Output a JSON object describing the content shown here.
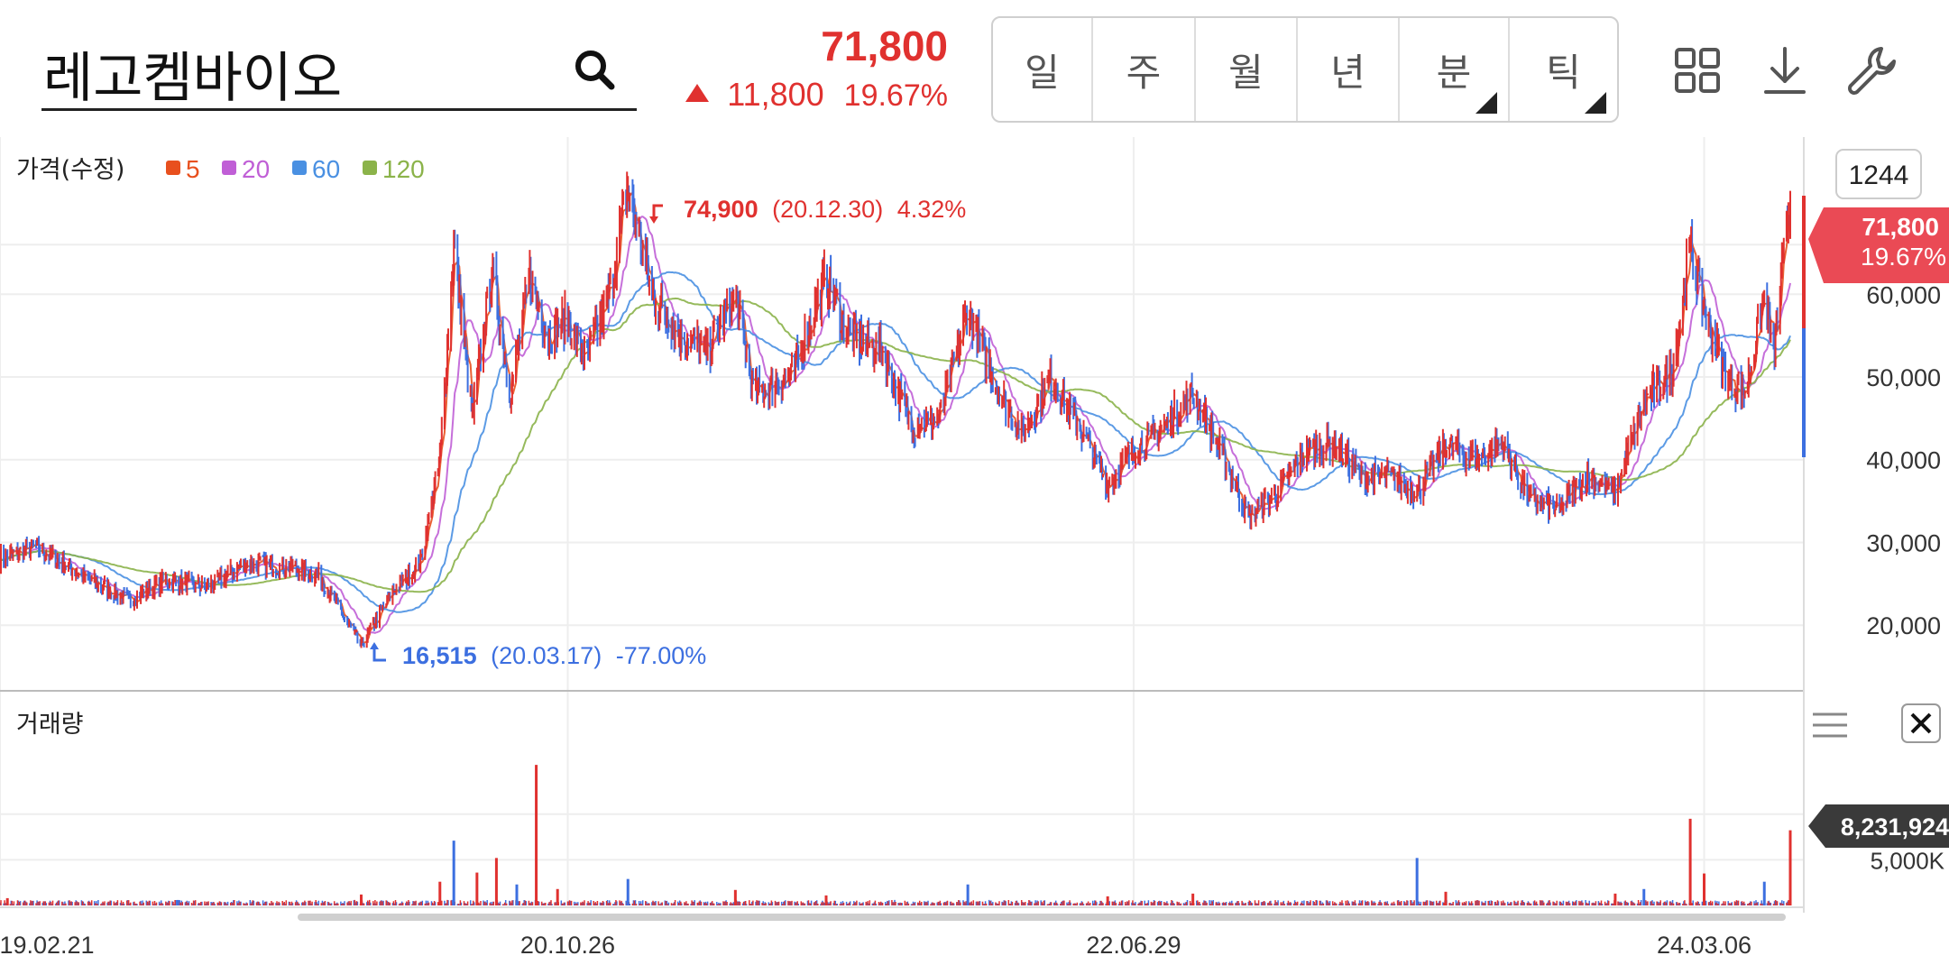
{
  "header": {
    "stock_name": "레고켐바이오",
    "price": "71,800",
    "change": "11,800",
    "change_pct": "19.67%"
  },
  "period_tabs": [
    {
      "label": "일",
      "active": true,
      "has_submenu": false
    },
    {
      "label": "주",
      "active": false,
      "has_submenu": false
    },
    {
      "label": "월",
      "active": false,
      "has_submenu": false
    },
    {
      "label": "년",
      "active": false,
      "has_submenu": false
    },
    {
      "label": "분",
      "active": false,
      "has_submenu": true
    },
    {
      "label": "틱",
      "active": false,
      "has_submenu": true
    }
  ],
  "icons": [
    "search-icon",
    "grid-icon",
    "download-icon",
    "wrench-icon",
    "menu-icon",
    "close-icon"
  ],
  "colors": {
    "up": "#e0312f",
    "down": "#3c6fe0",
    "ma5": "#e8501e",
    "ma20": "#c05fd6",
    "ma60": "#4a90e2",
    "ma120": "#8bb34a"
  },
  "chart_data": [
    {
      "type": "line",
      "title": "가격(수정)",
      "legend": [
        {
          "label": "5",
          "color": "#e8501e"
        },
        {
          "label": "20",
          "color": "#c05fd6"
        },
        {
          "label": "60",
          "color": "#4a90e2"
        },
        {
          "label": "120",
          "color": "#8bb34a"
        }
      ],
      "candle_count_label": "1244",
      "x_ticks": [
        "19.02.21",
        "20.10.26",
        "22.06.29",
        "24.03.06"
      ],
      "y_ticks": [
        "60,000",
        "50,000",
        "40,000",
        "30,000",
        "20,000"
      ],
      "y_tick_values": [
        60000,
        50000,
        40000,
        30000,
        20000
      ],
      "ylim": [
        12500,
        79000
      ],
      "current_price_label": {
        "price": "71,800",
        "pct": "19.67%"
      },
      "high_annotation": {
        "value": "74,900",
        "date": "(20.12.30)",
        "pct": "4.32%"
      },
      "low_annotation": {
        "value": "16,515",
        "date": "(20.03.17)",
        "pct": "-77.00%"
      },
      "series": [
        {
          "name": "close",
          "points": [
            [
              "2019-02-21",
              28000
            ],
            [
              "2019-04-01",
              29500
            ],
            [
              "2019-05-20",
              26000
            ],
            [
              "2019-07-10",
              23000
            ],
            [
              "2019-08-20",
              25500
            ],
            [
              "2019-10-01",
              24500
            ],
            [
              "2019-11-15",
              27500
            ],
            [
              "2019-12-30",
              27000
            ],
            [
              "2020-02-01",
              26000
            ],
            [
              "2020-03-17",
              17500
            ],
            [
              "2020-04-20",
              24000
            ],
            [
              "2020-05-20",
              27500
            ],
            [
              "2020-06-10",
              40000
            ],
            [
              "2020-06-25",
              66000
            ],
            [
              "2020-07-15",
              45000
            ],
            [
              "2020-08-05",
              63000
            ],
            [
              "2020-08-25",
              48000
            ],
            [
              "2020-09-15",
              62000
            ],
            [
              "2020-10-05",
              55000
            ],
            [
              "2020-10-26",
              57000
            ],
            [
              "2020-11-15",
              52000
            ],
            [
              "2020-12-10",
              60000
            ],
            [
              "2020-12-30",
              73000
            ],
            [
              "2021-01-25",
              60000
            ],
            [
              "2021-02-25",
              55000
            ],
            [
              "2021-03-25",
              53000
            ],
            [
              "2021-04-25",
              60000
            ],
            [
              "2021-05-15",
              48000
            ],
            [
              "2021-06-25",
              50000
            ],
            [
              "2021-08-01",
              62000
            ],
            [
              "2021-08-25",
              55000
            ],
            [
              "2021-10-01",
              53000
            ],
            [
              "2021-11-01",
              44000
            ],
            [
              "2021-12-01",
              45000
            ],
            [
              "2022-01-01",
              58000
            ],
            [
              "2022-02-01",
              49000
            ],
            [
              "2022-03-01",
              43000
            ],
            [
              "2022-04-01",
              50000
            ],
            [
              "2022-05-01",
              44000
            ],
            [
              "2022-06-01",
              37000
            ],
            [
              "2022-06-29",
              41000
            ],
            [
              "2022-08-01",
              44000
            ],
            [
              "2022-09-01",
              48000
            ],
            [
              "2022-10-01",
              41000
            ],
            [
              "2022-11-01",
              33000
            ],
            [
              "2022-12-01",
              36000
            ],
            [
              "2023-01-01",
              41000
            ],
            [
              "2023-02-01",
              42000
            ],
            [
              "2023-03-01",
              38000
            ],
            [
              "2023-04-01",
              38000
            ],
            [
              "2023-05-01",
              36000
            ],
            [
              "2023-06-01",
              42000
            ],
            [
              "2023-07-01",
              40000
            ],
            [
              "2023-08-01",
              42000
            ],
            [
              "2023-09-01",
              35000
            ],
            [
              "2023-10-01",
              34000
            ],
            [
              "2023-11-01",
              38000
            ],
            [
              "2023-12-01",
              36000
            ],
            [
              "2024-01-01",
              47000
            ],
            [
              "2024-02-01",
              51000
            ],
            [
              "2024-02-20",
              66000
            ],
            [
              "2024-03-06",
              58000
            ],
            [
              "2024-03-30",
              50000
            ],
            [
              "2024-04-20",
              48000
            ],
            [
              "2024-05-10",
              60000
            ],
            [
              "2024-05-20",
              53000
            ],
            [
              "2024-06-07",
              71800
            ]
          ]
        }
      ]
    },
    {
      "type": "bar",
      "title": "거래량",
      "last_volume_label": "8,231,924",
      "y_ticks": [
        "5,000K"
      ],
      "y_tick_values": [
        5000000
      ],
      "ylim": [
        0,
        16000000
      ],
      "series": [
        {
          "name": "volume",
          "points": [
            [
              "2019-03-01",
              800000
            ],
            [
              "2019-09-01",
              600000
            ],
            [
              "2020-03-17",
              1200000
            ],
            [
              "2020-06-10",
              2600000
            ],
            [
              "2020-06-25",
              7100000
            ],
            [
              "2020-07-20",
              3600000
            ],
            [
              "2020-08-10",
              5200000
            ],
            [
              "2020-09-01",
              2300000
            ],
            [
              "2020-09-22",
              15400000
            ],
            [
              "2020-10-15",
              1800000
            ],
            [
              "2020-12-30",
              2900000
            ],
            [
              "2021-04-25",
              1700000
            ],
            [
              "2021-08-01",
              1100000
            ],
            [
              "2022-01-01",
              2300000
            ],
            [
              "2022-06-01",
              1000000
            ],
            [
              "2022-09-01",
              1300000
            ],
            [
              "2023-05-01",
              5200000
            ],
            [
              "2023-06-01",
              1500000
            ],
            [
              "2023-12-01",
              1300000
            ],
            [
              "2024-01-01",
              1800000
            ],
            [
              "2024-02-20",
              9500000
            ],
            [
              "2024-03-06",
              3500000
            ],
            [
              "2024-05-10",
              2600000
            ],
            [
              "2024-06-07",
              8231924
            ]
          ]
        }
      ]
    }
  ]
}
